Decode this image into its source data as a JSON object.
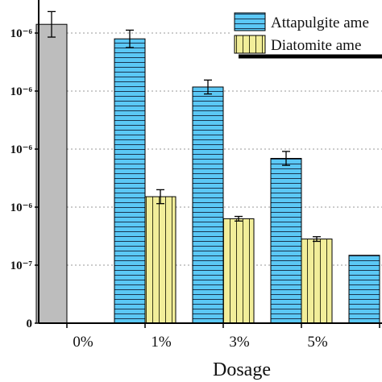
{
  "chart_data": {
    "type": "bar",
    "xlabel": "Dosage",
    "ylabel": "",
    "categories": [
      "0%",
      "1%",
      "3%",
      "5%",
      ""
    ],
    "y_tick_labels": [
      "0",
      "10⁻⁷",
      "10⁻⁶",
      "10⁻⁶",
      "10⁻⁶",
      "10⁻⁶"
    ],
    "grid": "horizontal-dotted",
    "legend_placement": "top-right",
    "control": {
      "category": "0%",
      "value": 5.15,
      "error": 0.22,
      "color": "#bdbdbd"
    },
    "series": [
      {
        "name": "Attapulgite ame",
        "color": "#5bc8f5",
        "pattern": "horizontal-lines",
        "values": [
          null,
          4.9,
          4.07,
          2.84,
          1.17
        ],
        "errors": [
          null,
          0.15,
          0.12,
          0.12,
          null
        ]
      },
      {
        "name": "Diatomite ame",
        "color": "#f2ee9a",
        "pattern": "vertical-lines",
        "values": [
          null,
          2.18,
          1.8,
          1.45,
          null
        ],
        "errors": [
          null,
          0.12,
          0.04,
          0.04,
          null
        ]
      }
    ],
    "ylim": [
      0,
      5.6
    ]
  }
}
